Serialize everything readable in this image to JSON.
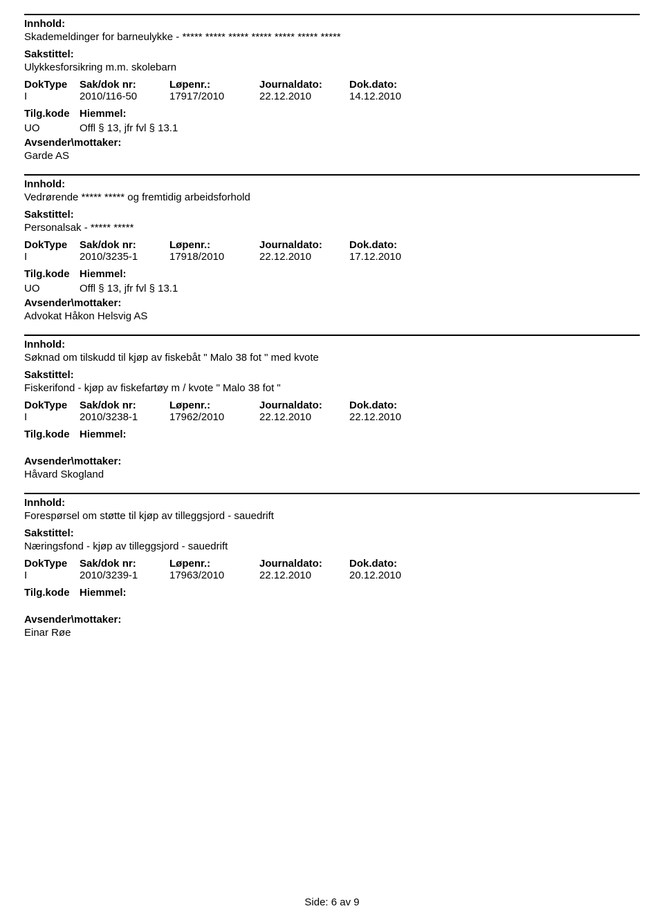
{
  "labels": {
    "innhold": "Innhold:",
    "sakstittel": "Sakstittel:",
    "doktype": "DokType",
    "saknr": "Sak/dok nr:",
    "lopenr": "Løpenr.:",
    "journaldato": "Journaldato:",
    "dokdato": "Dok.dato:",
    "tilgkode": "Tilg.kode",
    "hiemmel": "Hiemmel:",
    "avsender": "Avsender\\mottaker:"
  },
  "entries": [
    {
      "innhold": "Skademeldinger for barneulykke - ***** ***** ***** ***** ***** ***** *****",
      "sakstittel": "Ulykkesforsikring m.m. skolebarn",
      "doktype": "I",
      "saknr": "2010/116-50",
      "lopenr": "17917/2010",
      "journaldato": "22.12.2010",
      "dokdato": "14.12.2010",
      "tilgkode": "UO",
      "hiemmel": "Offl § 13, jfr fvl § 13.1",
      "avsender": "Garde AS"
    },
    {
      "innhold": "Vedrørende ***** ***** og fremtidig arbeidsforhold",
      "sakstittel": "Personalsak - ***** *****",
      "doktype": "I",
      "saknr": "2010/3235-1",
      "lopenr": "17918/2010",
      "journaldato": "22.12.2010",
      "dokdato": "17.12.2010",
      "tilgkode": "UO",
      "hiemmel": "Offl § 13, jfr fvl § 13.1",
      "avsender": "Advokat Håkon Helsvig AS"
    },
    {
      "innhold": "Søknad om tilskudd til kjøp av fiskebåt \" Malo 38 fot \" med kvote",
      "sakstittel": "Fiskerifond - kjøp av fiskefartøy m / kvote \" Malo 38 fot \"",
      "doktype": "I",
      "saknr": "2010/3238-1",
      "lopenr": "17962/2010",
      "journaldato": "22.12.2010",
      "dokdato": "22.12.2010",
      "tilgkode": "",
      "hiemmel": "",
      "avsender": "Håvard Skogland"
    },
    {
      "innhold": "Forespørsel om støtte til kjøp av tilleggsjord - sauedrift",
      "sakstittel": "Næringsfond - kjøp av tilleggsjord - sauedrift",
      "doktype": "I",
      "saknr": "2010/3239-1",
      "lopenr": "17963/2010",
      "journaldato": "22.12.2010",
      "dokdato": "20.12.2010",
      "tilgkode": "",
      "hiemmel": "",
      "avsender": "Einar Røe"
    }
  ],
  "footer": "Side: 6 av 9"
}
